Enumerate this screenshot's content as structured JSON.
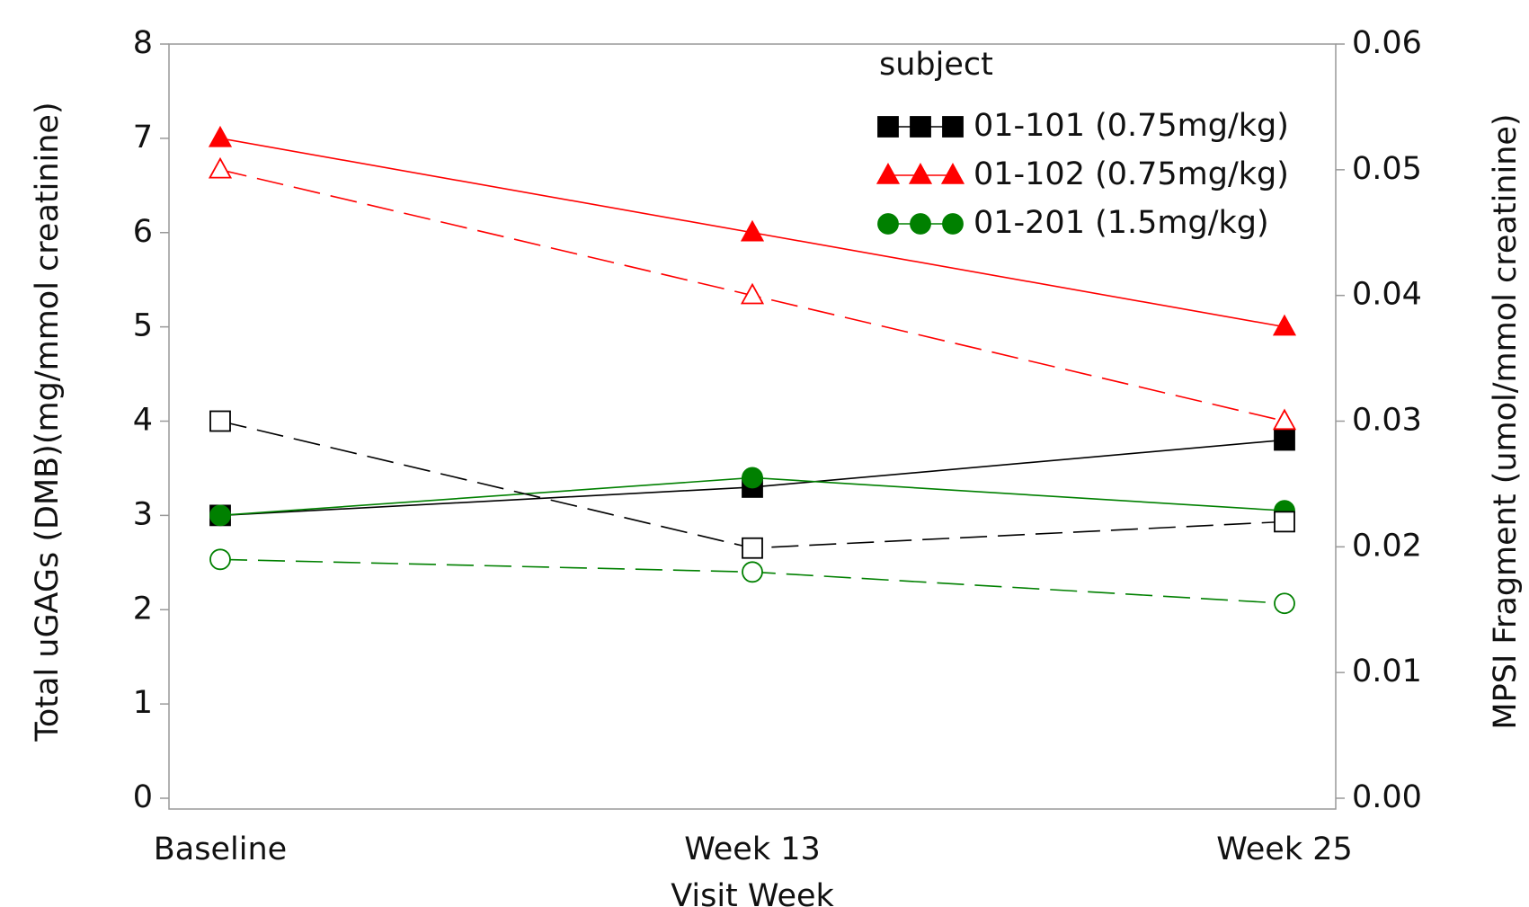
{
  "chart_data": {
    "type": "line",
    "x_label": "Visit Week",
    "y_label": "Total uGAGs (DMB)(mg/mmol creatinine)",
    "y2_label": "MPSI Fragment (umol/mmol creatinine)",
    "categories": [
      "Baseline",
      "Week 13",
      "Week 25"
    ],
    "ylim": [
      0,
      8
    ],
    "yticks": [
      0,
      1,
      2,
      3,
      4,
      5,
      6,
      7,
      8
    ],
    "y2lim": [
      0,
      0.06
    ],
    "y2ticks": [
      {
        "value": 0,
        "label": "0.00"
      },
      0.01,
      0.02,
      0.03,
      0.04,
      0.05,
      0.06
    ],
    "legend_title": "subject",
    "legend_position": "upper right",
    "series": [
      {
        "name": "01-101 (0.75mg/kg)",
        "color": "#000000",
        "marker": "square",
        "fill": "filled",
        "line": "solid",
        "values": [
          3.0,
          3.3,
          3.8
        ]
      },
      {
        "name": "01-102 (0.75mg/kg)",
        "color": "#ff0000",
        "marker": "triangle",
        "fill": "filled",
        "line": "solid",
        "values": [
          7.0,
          6.0,
          5.0
        ]
      },
      {
        "name": "01-201 (1.5mg/kg)",
        "color": "#008000",
        "marker": "circle",
        "fill": "filled",
        "line": "solid",
        "values": [
          3.0,
          3.4,
          3.05
        ]
      },
      {
        "color": "#000000",
        "marker": "square",
        "fill": "open",
        "line": "dashed",
        "axis": "y2",
        "values": [
          0.03,
          0.0199,
          0.022
        ]
      },
      {
        "color": "#ff0000",
        "marker": "triangle",
        "fill": "open",
        "line": "dashed",
        "axis": "y2",
        "values": [
          0.05,
          0.04,
          0.03
        ]
      },
      {
        "color": "#008000",
        "marker": "circle",
        "fill": "open",
        "line": "dashed",
        "axis": "y2",
        "values": [
          0.019,
          0.018,
          0.0155
        ]
      }
    ]
  }
}
